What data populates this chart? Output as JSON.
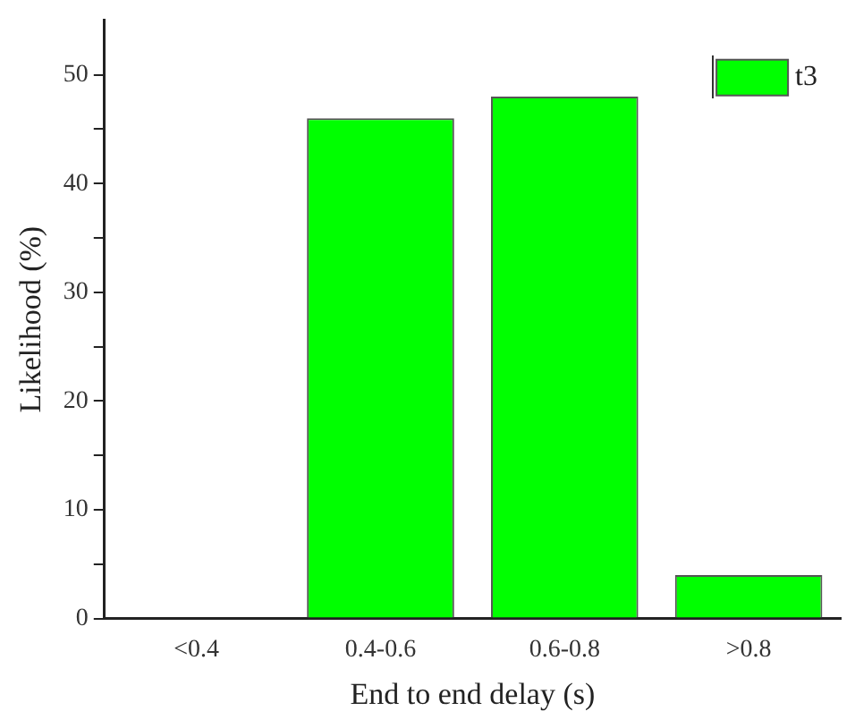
{
  "chart_data": {
    "type": "bar",
    "xlabel": "End to end delay (s)",
    "ylabel": "Likelihood (%)",
    "categories": [
      "<0.4",
      "0.4-0.6",
      "0.6-0.8",
      ">0.8"
    ],
    "series": [
      {
        "name": "t3",
        "color": "#00ff00",
        "values": [
          0,
          46,
          48,
          4
        ]
      }
    ],
    "ylim": [
      0,
      55
    ],
    "yticks": [
      0,
      {
        "value": 5,
        "label": null
      },
      10,
      {
        "value": 15,
        "label": null
      },
      20,
      {
        "value": 25,
        "label": null
      },
      30,
      {
        "value": 35,
        "label": null
      },
      40,
      {
        "value": 45,
        "label": null
      },
      50
    ],
    "grid": false,
    "legend": "top right"
  }
}
